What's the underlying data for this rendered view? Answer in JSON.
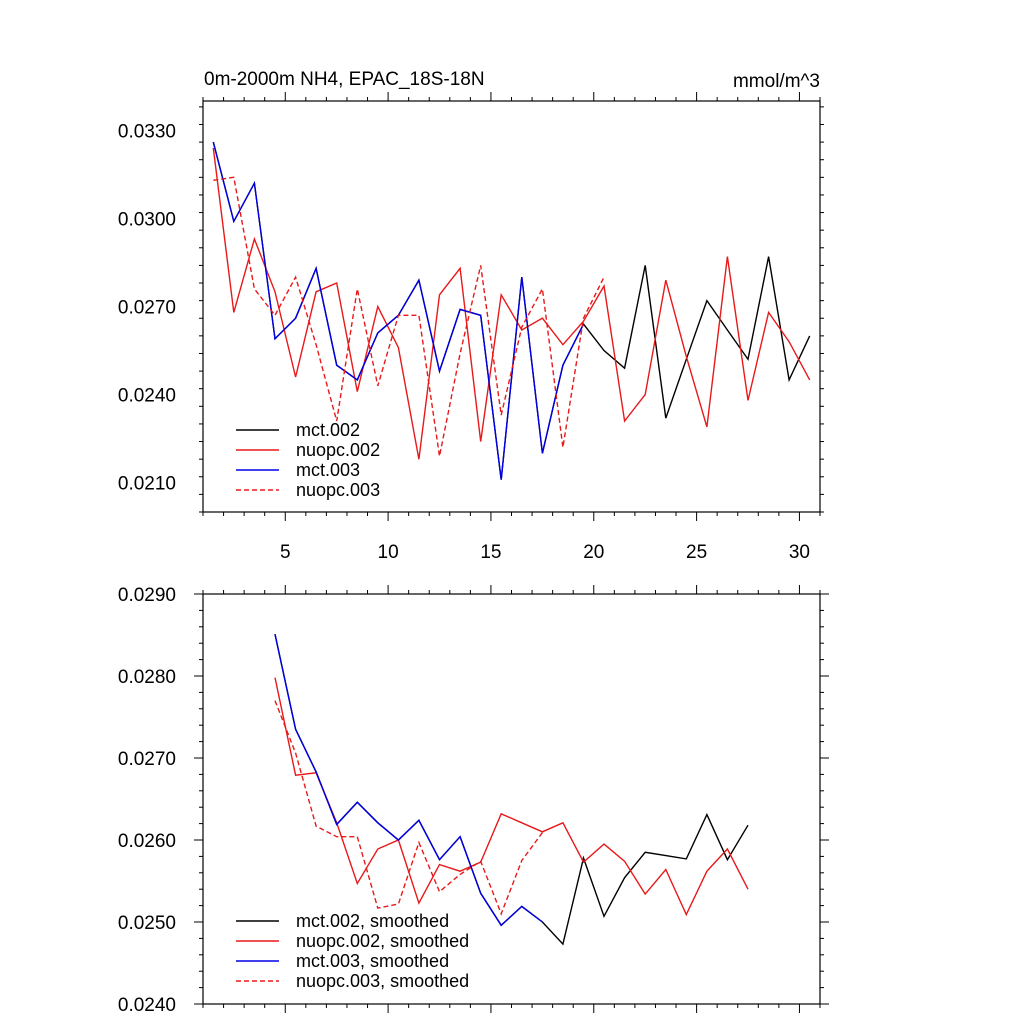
{
  "chart_data": [
    {
      "type": "line",
      "title": "0m-2000m NH4, EPAC_18S-18N",
      "units_label": "mmol/m^3",
      "xlim": [
        1,
        31
      ],
      "ylim": [
        0.02,
        0.034
      ],
      "x_ticks": [
        5,
        10,
        15,
        20,
        25,
        30
      ],
      "x_tick_labels": [
        "5",
        "10",
        "15",
        "20",
        "25",
        "30"
      ],
      "y_ticks": [
        0.033,
        0.03,
        0.027,
        0.024,
        0.021
      ],
      "y_tick_labels": [
        "0.0330",
        "0.0300",
        "0.0270",
        "0.0240",
        "0.0210"
      ],
      "legend_position": "bottom-left",
      "series": [
        {
          "name": "mct.002",
          "color": "#000000",
          "dash": "solid",
          "x": [
            1.5,
            2.5,
            3.5,
            4.5,
            5.5,
            6.5,
            7.5,
            8.5,
            9.5,
            10.5,
            11.5,
            12.5,
            13.5,
            14.5,
            15.5,
            16.5,
            17.5,
            18.5,
            19.5,
            20.5,
            21.5,
            22.5,
            23.5,
            24.5,
            25.5,
            26.5,
            27.5,
            28.5,
            29.5,
            30.5
          ],
          "values": [
            0.0326,
            0.0299,
            0.0312,
            0.0259,
            0.0266,
            0.0283,
            0.025,
            0.0245,
            0.0261,
            0.0267,
            0.0279,
            0.0248,
            0.0269,
            0.0267,
            0.0211,
            0.028,
            0.022,
            0.025,
            0.0264,
            0.0255,
            0.0249,
            0.0284,
            0.0232,
            0.0252,
            0.0272,
            0.0262,
            0.0252,
            0.0287,
            0.0245,
            0.026
          ]
        },
        {
          "name": "nuopc.002",
          "color": "#e8191a",
          "dash": "solid",
          "x": [
            1.5,
            2.5,
            3.5,
            4.5,
            5.5,
            6.5,
            7.5,
            8.5,
            9.5,
            10.5,
            11.5,
            12.5,
            13.5,
            14.5,
            15.5,
            16.5,
            17.5,
            18.5,
            19.5,
            20.5,
            21.5,
            22.5,
            23.5,
            24.5,
            25.5,
            26.5,
            27.5,
            28.5,
            29.5,
            30.5
          ],
          "values": [
            0.0324,
            0.0268,
            0.0293,
            0.0275,
            0.0246,
            0.0275,
            0.0278,
            0.0241,
            0.027,
            0.0256,
            0.0218,
            0.0274,
            0.0283,
            0.0224,
            0.0274,
            0.0262,
            0.0266,
            0.0257,
            0.0265,
            0.0277,
            0.0231,
            0.024,
            0.0279,
            0.0253,
            0.0229,
            0.0287,
            0.0238,
            0.0268,
            0.0258,
            0.0245
          ]
        },
        {
          "name": "mct.003",
          "color": "#0000e6",
          "dash": "solid",
          "x": [
            1.5,
            2.5,
            3.5,
            4.5,
            5.5,
            6.5,
            7.5,
            8.5,
            9.5,
            10.5,
            11.5,
            12.5,
            13.5,
            14.5,
            15.5,
            16.5,
            17.5,
            18.5,
            19.5
          ],
          "values": [
            0.0326,
            0.0299,
            0.0312,
            0.0259,
            0.0266,
            0.0283,
            0.025,
            0.0245,
            0.0261,
            0.0267,
            0.0279,
            0.0248,
            0.0269,
            0.0267,
            0.0211,
            0.028,
            0.022,
            0.025,
            0.0264
          ]
        },
        {
          "name": "nuopc.003",
          "color": "#e8191a",
          "dash": "dashed",
          "x": [
            1.5,
            2.5,
            3.5,
            4.5,
            5.5,
            6.5,
            7.5,
            8.5,
            9.5,
            10.5,
            11.5,
            12.5,
            13.5,
            14.5,
            15.5,
            16.5,
            17.5,
            18.5,
            19.5,
            20.5
          ],
          "values": [
            0.0313,
            0.0314,
            0.0276,
            0.0267,
            0.028,
            0.0257,
            0.0231,
            0.0276,
            0.0243,
            0.0267,
            0.0267,
            0.0219,
            0.0254,
            0.0284,
            0.0233,
            0.0263,
            0.0276,
            0.0222,
            0.0266,
            0.028
          ]
        }
      ]
    },
    {
      "type": "line",
      "title": "",
      "xlim": [
        1,
        31
      ],
      "ylim": [
        0.024,
        0.029
      ],
      "x_ticks": [
        5,
        10,
        15,
        20,
        25,
        30
      ],
      "x_tick_labels": [],
      "y_ticks": [
        0.029,
        0.028,
        0.027,
        0.026,
        0.025,
        0.024
      ],
      "y_tick_labels": [
        "0.0290",
        "0.0280",
        "0.0270",
        "0.0260",
        "0.0250",
        "0.0240"
      ],
      "legend_position": "bottom-left",
      "series": [
        {
          "name": "mct.002, smoothed",
          "color": "#000000",
          "dash": "solid",
          "x": [
            4.5,
            5.5,
            6.5,
            7.5,
            8.5,
            9.5,
            10.5,
            11.5,
            12.5,
            13.5,
            14.5,
            15.5,
            16.5,
            17.5,
            18.5,
            19.5,
            20.5,
            21.5,
            22.5,
            23.5,
            24.5,
            25.5,
            26.5,
            27.5
          ],
          "values": [
            0.02851,
            0.02735,
            0.02683,
            0.02619,
            0.02646,
            0.02621,
            0.026,
            0.02624,
            0.02576,
            0.02604,
            0.02535,
            0.02496,
            0.02519,
            0.025,
            0.02473,
            0.02578,
            0.02507,
            0.02554,
            0.02585,
            0.02581,
            0.02577,
            0.02631,
            0.02576,
            0.02618
          ]
        },
        {
          "name": "nuopc.002, smoothed",
          "color": "#e8191a",
          "dash": "solid",
          "x": [
            4.5,
            5.5,
            6.5,
            7.5,
            8.5,
            9.5,
            10.5,
            11.5,
            12.5,
            13.5,
            14.5,
            15.5,
            16.5,
            17.5,
            18.5,
            19.5,
            20.5,
            21.5,
            22.5,
            23.5,
            24.5,
            25.5,
            26.5,
            27.5
          ],
          "values": [
            0.02798,
            0.02679,
            0.02682,
            0.02621,
            0.02547,
            0.02589,
            0.026,
            0.02523,
            0.0257,
            0.02562,
            0.02573,
            0.02632,
            0.02621,
            0.0261,
            0.02621,
            0.02573,
            0.02595,
            0.02574,
            0.02534,
            0.02564,
            0.02509,
            0.02562,
            0.02589,
            0.0254
          ]
        },
        {
          "name": "mct.003, smoothed",
          "color": "#0000e6",
          "dash": "solid",
          "x": [
            4.5,
            5.5,
            6.5,
            7.5,
            8.5,
            9.5,
            10.5,
            11.5,
            12.5,
            13.5,
            14.5,
            15.5,
            16.5,
            17.5
          ],
          "values": [
            0.02851,
            0.02735,
            0.02683,
            0.02619,
            0.02646,
            0.02621,
            0.026,
            0.02624,
            0.02576,
            0.02604,
            0.02535,
            0.02496,
            0.02519,
            0.025
          ]
        },
        {
          "name": "nuopc.003, smoothed",
          "color": "#e8191a",
          "dash": "dashed",
          "x": [
            4.5,
            5.5,
            6.5,
            7.5,
            8.5,
            9.5,
            10.5,
            11.5,
            12.5,
            13.5,
            14.5,
            15.5,
            16.5,
            17.5
          ],
          "values": [
            0.0277,
            0.02706,
            0.02617,
            0.02604,
            0.02604,
            0.02517,
            0.02522,
            0.02597,
            0.02537,
            0.02558,
            0.02574,
            0.0251,
            0.02575,
            0.02609
          ]
        }
      ]
    }
  ]
}
